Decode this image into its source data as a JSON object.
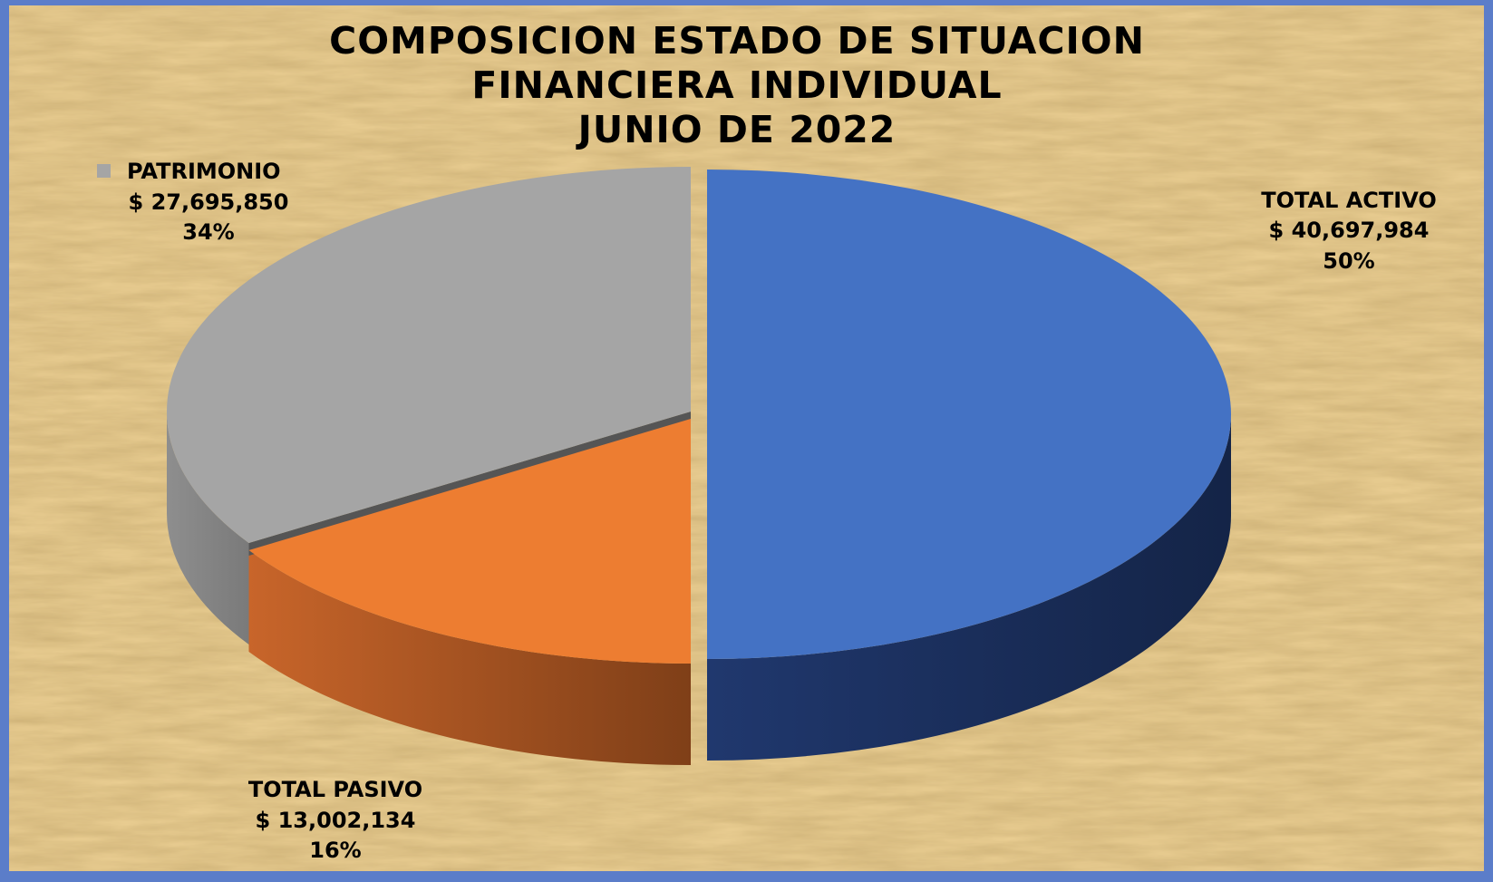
{
  "chart_data": {
    "type": "pie",
    "title_lines": [
      "COMPOSICION ESTADO DE SITUACION",
      "FINANCIERA INDIVIDUAL",
      "JUNIO DE 2022"
    ],
    "slices": [
      {
        "label": "TOTAL ACTIVO",
        "value_text": "$ 40,697,984",
        "value": 40697984,
        "percent_text": "50%",
        "percent": 50,
        "color": "#4472C4",
        "side_color": "#1F3264"
      },
      {
        "label": "TOTAL PASIVO",
        "value_text": "$ 13,002,134",
        "value": 13002134,
        "percent_text": "16%",
        "percent": 16,
        "color": "#ED7D31",
        "side_color": "#9E4A18"
      },
      {
        "label": "PATRIMONIO",
        "value_text": "$ 27,695,850",
        "value": 27695850,
        "percent_text": "34%",
        "percent": 34,
        "color": "#A5A5A5",
        "side_color": "#8C8C8C"
      }
    ],
    "legend_marker_color": "#A5A5A5",
    "style": "3d-exploded",
    "background": "parchment-texture",
    "background_color": "#EBCF93",
    "frame_color": "#5B7DC9"
  }
}
